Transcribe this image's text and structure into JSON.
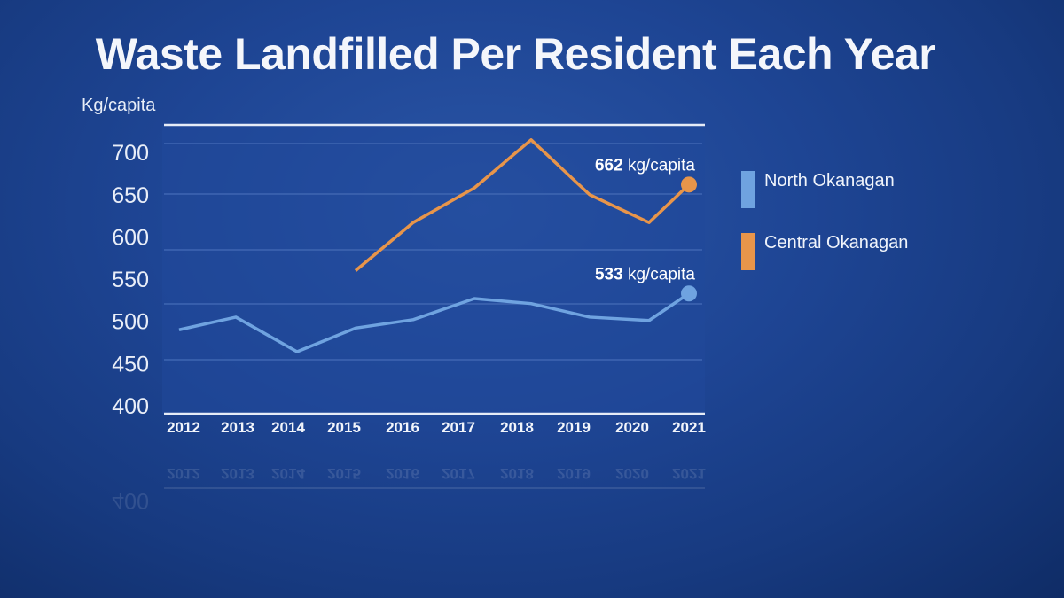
{
  "chart_data": {
    "type": "line",
    "title": "Waste Landfilled Per Resident Each Year",
    "ylabel": "Kg/capita",
    "xlabel": "",
    "ylim": [
      400,
      700
    ],
    "yticks": [
      "700",
      "650",
      "600",
      "550",
      "500",
      "450",
      "400"
    ],
    "categories": [
      "2012",
      "2013",
      "2014",
      "2015",
      "2016",
      "2017",
      "2018",
      "2019",
      "2020",
      "2021"
    ],
    "grid": true,
    "legend_position": "right",
    "series": [
      {
        "name": "North Okanagan",
        "color": "#6fa3e0",
        "values": [
          490,
          505,
          464,
          492,
          502,
          527,
          521,
          505,
          501,
          533
        ],
        "end_label": {
          "value": "533",
          "unit": "kg/capita"
        }
      },
      {
        "name": "Central Okanagan",
        "color": "#e8954a",
        "values": [
          null,
          null,
          null,
          560,
          617,
          658,
          715,
          650,
          617,
          662
        ],
        "end_label": {
          "value": "662",
          "unit": "kg/capita"
        }
      }
    ]
  }
}
